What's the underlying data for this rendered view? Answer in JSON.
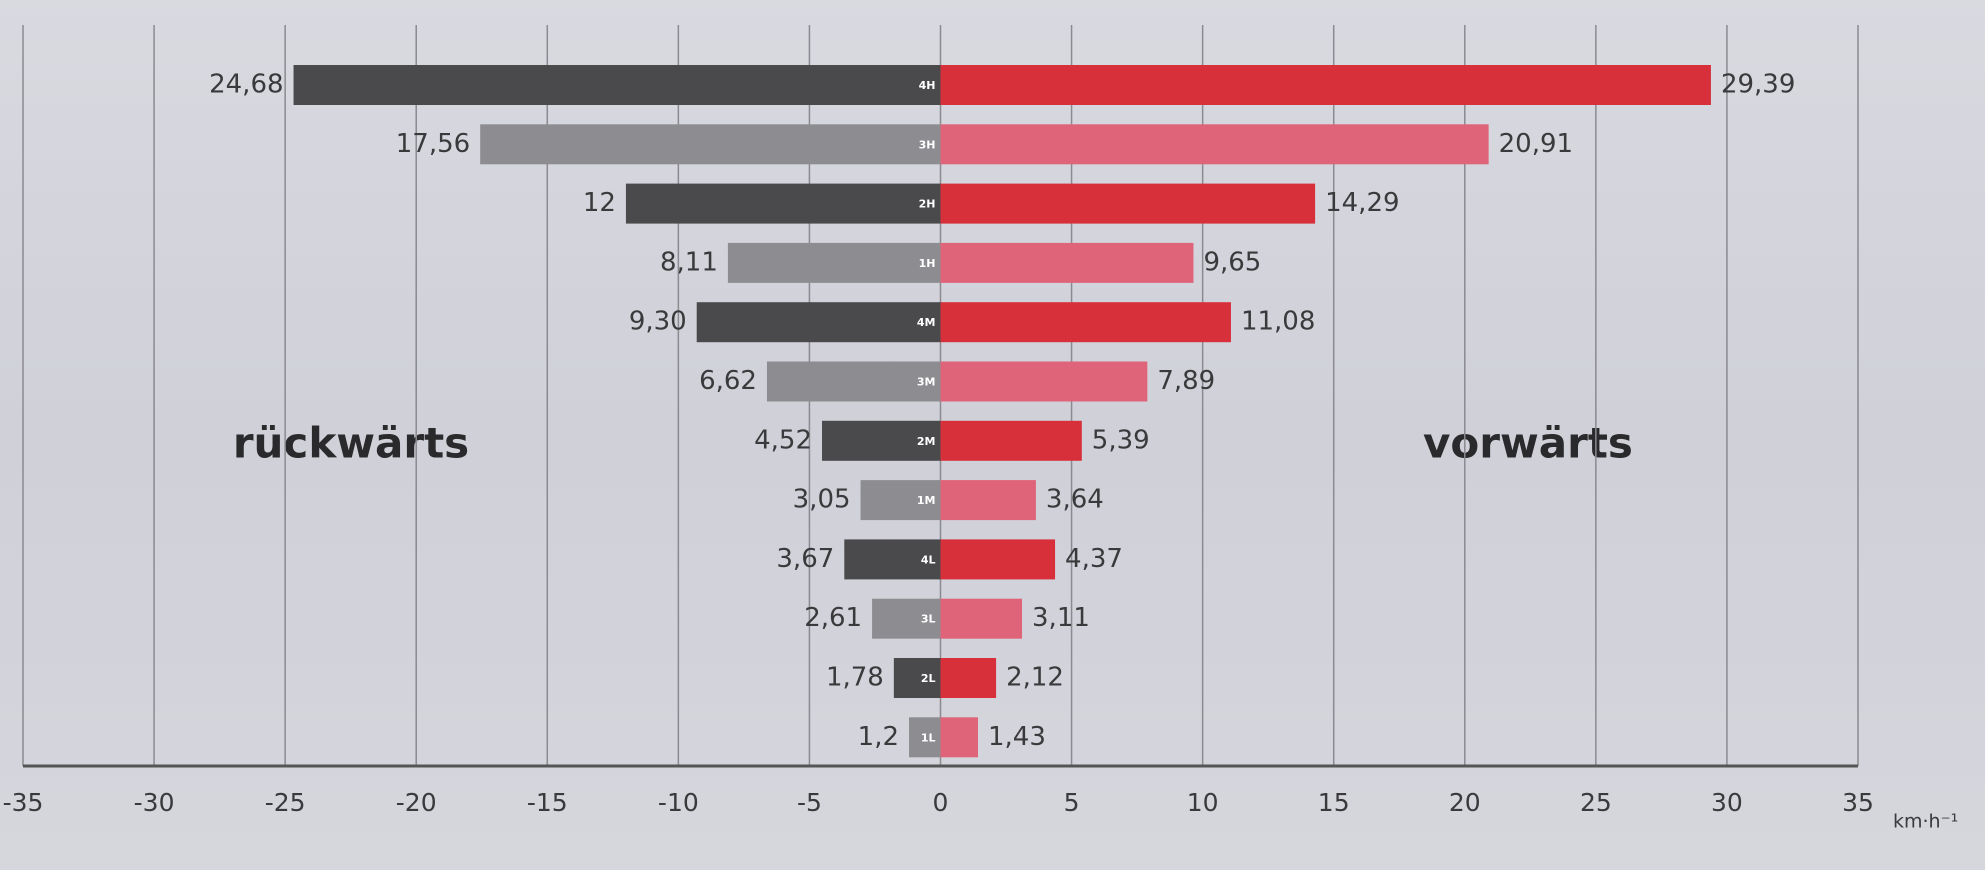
{
  "chart_data": {
    "type": "butterfly",
    "categories": [
      "4H",
      "3H",
      "2H",
      "1H",
      "4M",
      "3M",
      "2M",
      "1M",
      "4L",
      "3L",
      "2L",
      "1L"
    ],
    "series": [
      {
        "name": "rückwärts",
        "colors": [
          "#4a4a4d",
          "#8d8d91",
          "#4a4a4d",
          "#8d8d91",
          "#4a4a4d",
          "#8d8d91",
          "#4a4a4d",
          "#8d8d91",
          "#4a4a4d",
          "#8d8d91",
          "#4a4a4d",
          "#8d8d91"
        ],
        "values": [
          -24.68,
          -17.56,
          -12,
          -8.11,
          -9.3,
          -6.62,
          -4.52,
          -3.05,
          -3.67,
          -2.61,
          -1.78,
          -1.2
        ],
        "value_labels": [
          "24,68",
          "17,56",
          "12",
          "8,11",
          "9,30",
          "6,62",
          "4,52",
          "3,05",
          "3,67",
          "2,61",
          "1,78",
          "1,2"
        ]
      },
      {
        "name": "vorwärts",
        "colors": [
          "#d8303a",
          "#e06479",
          "#d8303a",
          "#e06479",
          "#d8303a",
          "#e06479",
          "#d8303a",
          "#e06479",
          "#d8303a",
          "#e06479",
          "#d8303a",
          "#e06479"
        ],
        "values": [
          29.39,
          20.91,
          14.29,
          9.65,
          11.08,
          7.89,
          5.39,
          3.64,
          4.37,
          3.11,
          2.12,
          1.43
        ],
        "value_labels": [
          "29,39",
          "20,91",
          "14,29",
          "9,65",
          "11,08",
          "7,89",
          "5,39",
          "3,64",
          "4,37",
          "3,11",
          "2,12",
          "1,43"
        ]
      }
    ],
    "x_unit": "km·h⁻¹",
    "xlim": [
      -35,
      35
    ],
    "xticks": [
      -35,
      -30,
      -25,
      -20,
      -15,
      -10,
      -5,
      0,
      5,
      10,
      15,
      20,
      25,
      30,
      35
    ],
    "grid": true
  }
}
